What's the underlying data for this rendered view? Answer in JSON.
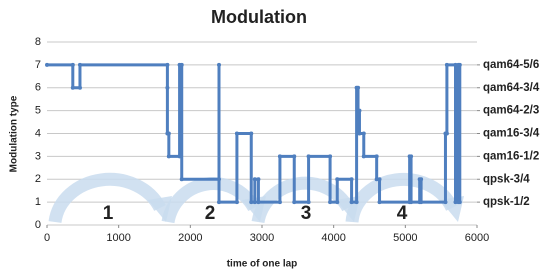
{
  "chart_data": {
    "type": "step",
    "title": "Modulation",
    "xlabel": "time of one lap",
    "ylabel": "Modulation type",
    "color": "#4f7fbf",
    "x": [
      0,
      360,
      360,
      460,
      460,
      1680,
      1680,
      1680,
      1700,
      1700,
      1850,
      1850,
      1880,
      1880,
      2400,
      2400,
      2400,
      2650,
      2650,
      2850,
      2850,
      2900,
      2900,
      2950,
      2950,
      3250,
      3250,
      3450,
      3450,
      3650,
      3650,
      3950,
      3950,
      4050,
      4050,
      4250,
      4250,
      4320,
      4320,
      4340,
      4340,
      4360,
      4360,
      4420,
      4420,
      4600,
      4600,
      4640,
      4640,
      5060,
      5060,
      5080,
      5080,
      5200,
      5200,
      5220,
      5220,
      5560,
      5560,
      5580,
      5580,
      5700,
      5700,
      5740,
      5740,
      5760,
      5760
    ],
    "values": [
      7,
      7,
      6,
      6,
      7,
      7,
      6,
      4,
      4,
      3,
      3,
      7,
      7,
      2,
      2,
      7,
      1,
      1,
      4,
      4,
      1,
      1,
      2,
      2,
      1,
      1,
      3,
      3,
      1,
      1,
      3,
      3,
      1,
      1,
      2,
      2,
      1,
      1,
      6,
      6,
      5,
      5,
      4,
      4,
      3,
      3,
      2,
      2,
      1,
      1,
      3,
      3,
      1,
      1,
      2,
      2,
      1,
      1,
      4,
      4,
      7,
      7,
      1,
      1,
      7,
      7,
      1
    ],
    "xlim": [
      0,
      6000
    ],
    "xticks": [
      0,
      1000,
      2000,
      3000,
      4000,
      5000,
      6000
    ],
    "ylim": [
      0,
      8
    ],
    "yticks": [
      0,
      1,
      2,
      3,
      4,
      5,
      6,
      7,
      8
    ],
    "y2lim": [
      0,
      8
    ],
    "y2ticks": [
      {
        "value": 7,
        "label": "qam64-5/6"
      },
      {
        "value": 6,
        "label": "qam64-3/4"
      },
      {
        "value": 5,
        "label": "qam64-2/3"
      },
      {
        "value": 4,
        "label": "qam16-3/4"
      },
      {
        "value": 3,
        "label": "qam16-1/2"
      },
      {
        "value": 2,
        "label": "qpsk-3/4"
      },
      {
        "value": 1,
        "label": "qpsk-1/2"
      }
    ],
    "grid": true,
    "annotations": [
      "1",
      "2",
      "3",
      "4"
    ]
  }
}
